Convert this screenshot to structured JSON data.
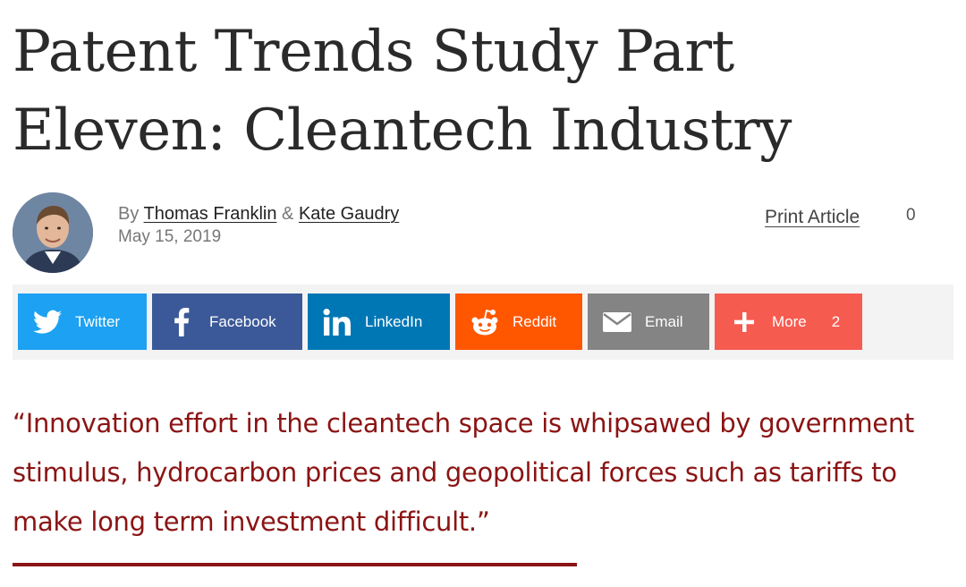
{
  "article": {
    "title": "Patent Trends Study Part Eleven: Cleantech Industry",
    "byline_prefix": "By",
    "author_1": "Thomas Franklin",
    "author_separator": "&",
    "author_2": "Kate Gaudry",
    "date": "May 15, 2019",
    "print_label": "Print Article",
    "comment_count": "0",
    "pull_quote": "“Innovation effort in the cleantech space is whipsawed by government stimulus, hydrocarbon prices and geopolitical forces such as tariffs to make long term investment difficult.”",
    "quote_color": "#8b1414"
  },
  "share": {
    "buttons": [
      {
        "label": "Twitter",
        "icon": "twitter-bird-icon",
        "color": "#1da1f2"
      },
      {
        "label": "Facebook",
        "icon": "facebook-f-icon",
        "color": "#3b5998"
      },
      {
        "label": "LinkedIn",
        "icon": "linkedin-in-icon",
        "color": "#0077b5"
      },
      {
        "label": "Reddit",
        "icon": "reddit-alien-icon",
        "color": "#ff5700"
      },
      {
        "label": "Email",
        "icon": "envelope-icon",
        "color": "#848484"
      },
      {
        "label": "More",
        "icon": "plus-icon",
        "color": "#f65b50",
        "count": "2"
      }
    ]
  }
}
